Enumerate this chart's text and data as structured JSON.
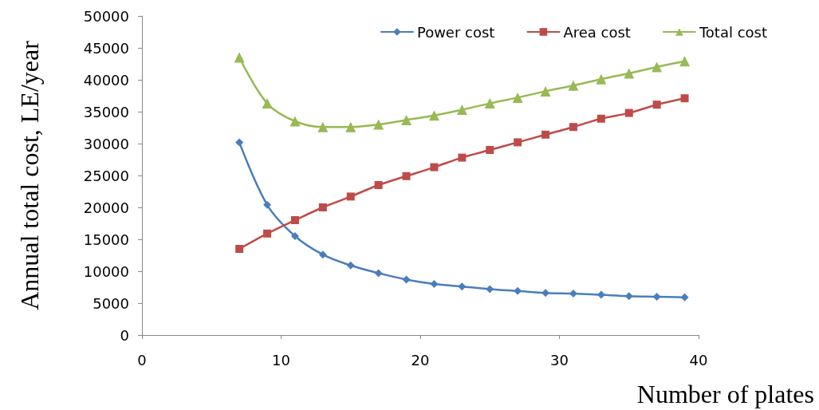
{
  "chart_data": {
    "type": "line",
    "xlabel": "Number of plates",
    "ylabel": "Annual total cost, LE/year",
    "x": [
      7,
      9,
      11,
      13,
      15,
      17,
      19,
      21,
      23,
      25,
      27,
      29,
      31,
      33,
      35,
      37,
      39
    ],
    "xlim": [
      0,
      40
    ],
    "xticks": [
      0,
      10,
      20,
      30,
      40
    ],
    "ylim": [
      0,
      50000
    ],
    "yticks": [
      0,
      5000,
      10000,
      15000,
      20000,
      25000,
      30000,
      35000,
      40000,
      45000,
      50000
    ],
    "grid": false,
    "legend": "top right",
    "line_style": "solid",
    "series": [
      {
        "name": "Power cost",
        "color": "#4a7ebb",
        "marker": "diamond",
        "values": [
          30200,
          20400,
          15500,
          12600,
          10900,
          9700,
          8700,
          8000,
          7600,
          7200,
          6900,
          6600,
          6500,
          6300,
          6100,
          6000,
          5900
        ]
      },
      {
        "name": "Area cost",
        "color": "#be4b48",
        "marker": "square",
        "values": [
          13500,
          15900,
          18000,
          20000,
          21700,
          23500,
          24900,
          26300,
          27800,
          29000,
          30200,
          31400,
          32600,
          33900,
          34800,
          36100,
          37100
        ]
      },
      {
        "name": "Total cost",
        "color": "#98b954",
        "marker": "triangle",
        "values": [
          43500,
          36300,
          33500,
          32600,
          32600,
          33000,
          33700,
          34400,
          35300,
          36300,
          37200,
          38200,
          39100,
          40100,
          41000,
          42000,
          42900
        ]
      }
    ]
  }
}
